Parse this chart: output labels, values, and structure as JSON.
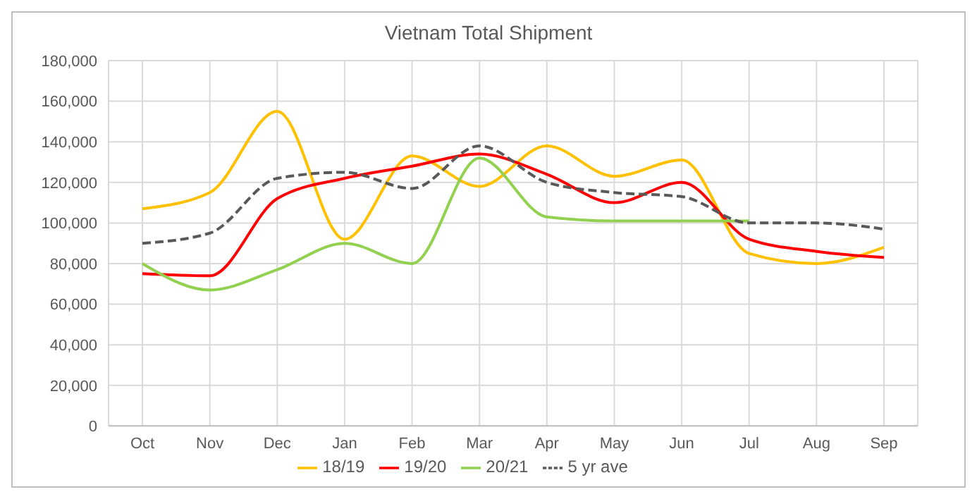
{
  "chart_data": {
    "type": "line",
    "title": "Vietnam Total Shipment",
    "categories": [
      "Oct",
      "Nov",
      "Dec",
      "Jan",
      "Feb",
      "Mar",
      "Apr",
      "May",
      "Jun",
      "Jul",
      "Aug",
      "Sep"
    ],
    "series": [
      {
        "name": "18/19",
        "color": "#ffc000",
        "values": [
          107000,
          115000,
          155000,
          92000,
          133000,
          118000,
          138000,
          123000,
          131000,
          85000,
          80000,
          88000
        ]
      },
      {
        "name": "19/20",
        "color": "#ff0000",
        "values": [
          75000,
          74000,
          112000,
          122000,
          128000,
          134000,
          124000,
          110000,
          120000,
          92000,
          86000,
          83000
        ]
      },
      {
        "name": "20/21",
        "color": "#92d050",
        "values": [
          80000,
          67000,
          77000,
          90000,
          80000,
          132000,
          103000,
          101000,
          101000,
          101000,
          null,
          null
        ]
      },
      {
        "name": "5 yr ave",
        "color": "#595959",
        "line_style": "dashed",
        "values": [
          90000,
          95000,
          122000,
          125000,
          117000,
          138000,
          120000,
          115000,
          113000,
          100000,
          100000,
          97000
        ]
      }
    ],
    "ylim": [
      0,
      180000
    ],
    "yticks": [
      0,
      {
        "value": 20000,
        "label": "20,000"
      },
      {
        "value": 40000,
        "label": "40,000"
      },
      {
        "value": 60000,
        "label": "60,000"
      },
      {
        "value": 80000,
        "label": "80,000"
      },
      {
        "value": 100000,
        "label": "100,000"
      },
      {
        "value": 120000,
        "label": "120,000"
      },
      {
        "value": 140000,
        "label": "140,000"
      },
      {
        "value": 160000,
        "label": "160,000"
      },
      {
        "value": 180000,
        "label": "180,000"
      }
    ],
    "grid": true,
    "legend": "bottom",
    "marker": "none"
  }
}
